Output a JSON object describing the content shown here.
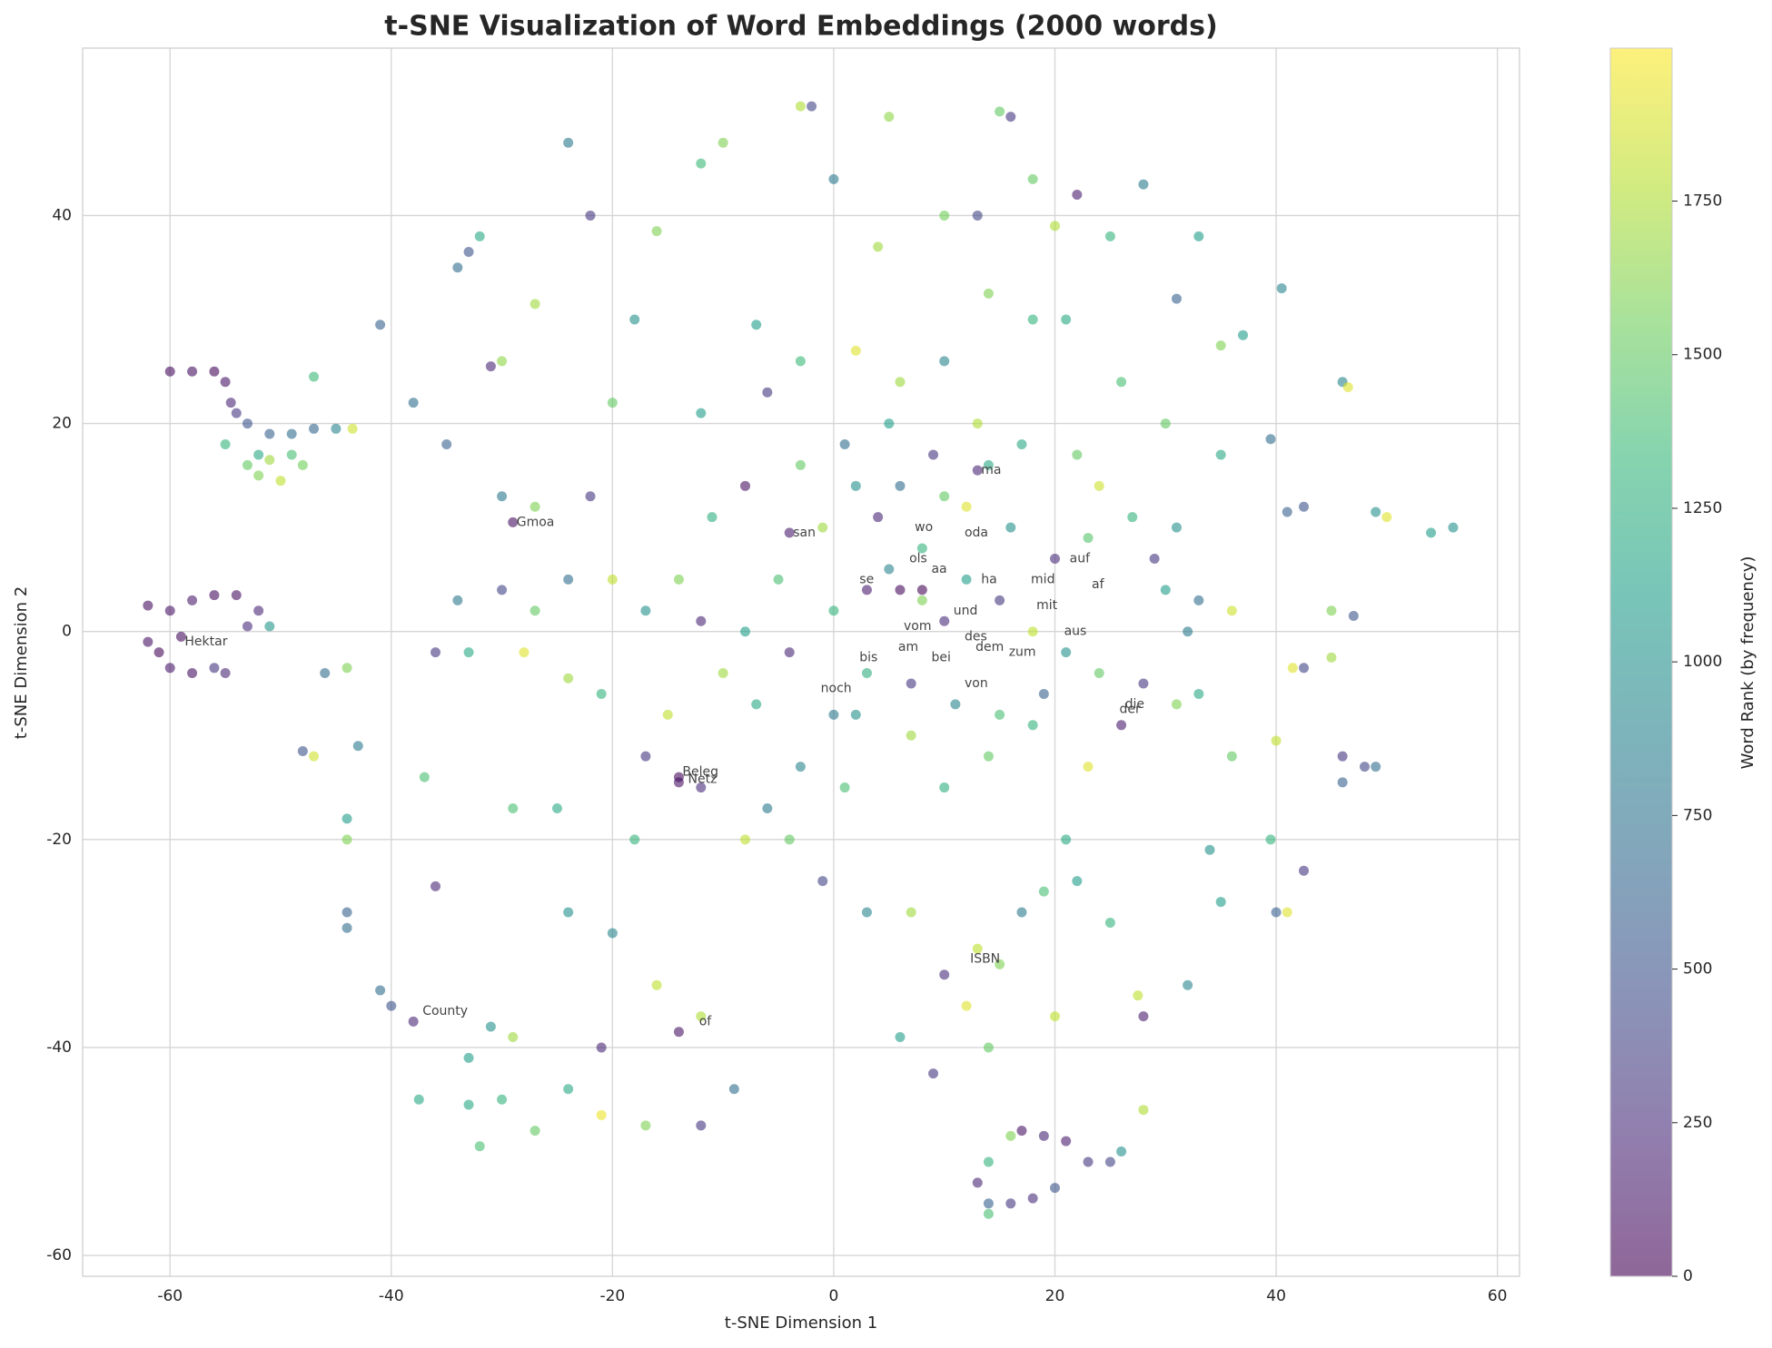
{
  "chart_data": {
    "type": "scatter",
    "title": "t-SNE Visualization of Word Embeddings (2000 words)",
    "x_label": "t-SNE Dimension 1",
    "y_label": "t-SNE Dimension 2",
    "colorbar_label": "Word Rank (by frequency)",
    "xlim": [
      -67.9,
      62.0
    ],
    "ylim": [
      -62.0,
      56.1
    ],
    "xticks": [
      -60,
      -40,
      -20,
      0,
      20,
      40,
      60
    ],
    "yticks": [
      -60,
      -40,
      -20,
      0,
      20,
      40
    ],
    "clim": [
      0,
      1999
    ],
    "cticks": [
      0,
      250,
      500,
      750,
      1000,
      1250,
      1500,
      1750
    ],
    "colormap": [
      "#440154",
      "#482878",
      "#3e4a89",
      "#31688e",
      "#26828e",
      "#1f9e89",
      "#35b779",
      "#6ece58",
      "#b5de2b",
      "#fde725"
    ],
    "alpha": 0.6,
    "grid": true,
    "x": [
      -60,
      -58,
      -56,
      -55,
      -54.5,
      -54,
      -53,
      -51,
      -49,
      -47,
      -45,
      -43.5,
      -55,
      -53,
      -52,
      -51,
      -50,
      -52,
      -49,
      -48,
      -62,
      -60,
      -58,
      -56,
      -54,
      -52,
      -51,
      -53,
      -61,
      -60,
      -58,
      -56,
      -55,
      -62,
      -47,
      -41,
      -34,
      -33,
      -32,
      -24,
      -22,
      -12,
      -10,
      -3,
      -2,
      5,
      15,
      16,
      18,
      22,
      28,
      33,
      40.5,
      -27,
      -30,
      -31,
      -18,
      -16,
      -7,
      0,
      4,
      10,
      13,
      20,
      25,
      31,
      35,
      37,
      -38,
      -35,
      -30,
      -27,
      -22,
      -20,
      -12,
      -6,
      -3,
      2,
      6,
      10,
      14,
      18,
      21,
      26,
      30,
      35,
      39.5,
      41,
      46,
      46.5,
      49,
      50,
      54,
      56,
      42.5,
      45,
      47,
      45,
      41.5,
      42.5,
      40,
      46,
      48,
      49,
      46,
      42.5,
      40,
      41,
      39.5,
      35,
      34,
      32,
      28,
      27.5,
      26,
      28,
      17,
      19,
      21,
      23,
      25,
      20,
      18,
      16,
      14,
      13,
      14,
      14,
      16,
      -17,
      -14,
      -12,
      -4,
      -1,
      3,
      7,
      10,
      13,
      15,
      12,
      6,
      9,
      14,
      20,
      21,
      19,
      22,
      25,
      17,
      -14,
      -12,
      -16,
      -21,
      -21,
      -17,
      -12,
      -9,
      -24,
      -27,
      -30,
      -32,
      -33,
      -33,
      -31,
      -29,
      -38,
      -40,
      -41,
      -37.5,
      -44,
      -44,
      -44,
      -44,
      -48,
      -47,
      -46,
      -44,
      -43,
      -37,
      -36,
      -29,
      -25,
      -24,
      -20,
      -18,
      -8,
      -6,
      -3,
      1,
      2,
      7,
      10,
      14,
      18,
      23,
      26,
      28,
      31,
      33,
      36,
      32,
      36,
      33,
      30,
      29,
      31,
      27,
      24,
      22,
      17,
      13,
      9,
      5,
      1,
      -3,
      -8,
      -11,
      -14,
      -17,
      -20,
      -24,
      -27,
      -30,
      -34,
      -36,
      -33,
      -28,
      -24,
      -21,
      -15,
      -10,
      -7,
      -4,
      0,
      3,
      5,
      8,
      10,
      12,
      15,
      18,
      21,
      24,
      19,
      15,
      11,
      7,
      3,
      0,
      4,
      8,
      12,
      16,
      20,
      23,
      2,
      -1,
      -5,
      -8,
      -12,
      6,
      10,
      14,
      -29,
      -59,
      -14,
      6,
      8,
      -4,
      13
    ],
    "y": [
      25,
      25,
      25,
      24,
      22,
      21,
      20,
      19,
      19,
      19.5,
      19.5,
      19.5,
      18,
      16,
      15,
      16.5,
      14.5,
      17,
      17,
      16,
      2.5,
      2,
      3,
      3.5,
      3.5,
      2,
      0.5,
      0.5,
      -2,
      -3.5,
      -4,
      -3.5,
      -4,
      -1,
      24.5,
      29.5,
      35,
      36.5,
      38,
      47,
      40,
      45,
      47,
      50.5,
      50.5,
      49.5,
      50,
      49.5,
      43.5,
      42,
      43,
      38,
      33,
      31.5,
      26,
      25.5,
      30,
      38.5,
      29.5,
      43.5,
      37,
      40,
      40,
      39,
      38,
      32,
      27.5,
      28.5,
      22,
      18,
      13,
      12,
      13,
      22,
      21,
      23,
      26,
      27,
      24,
      26,
      32.5,
      30,
      30,
      24,
      20,
      17,
      18.5,
      11.5,
      24,
      23.5,
      11.5,
      11,
      9.5,
      10,
      12,
      2,
      1.5,
      -2.5,
      -3.5,
      -3.5,
      -10.5,
      -12,
      -13,
      -13,
      -14.5,
      -23,
      -27,
      -27,
      -20,
      -26,
      -21,
      -34,
      -37,
      -35,
      -50,
      -46,
      -48,
      -48.5,
      -49,
      -51,
      -51,
      -53.5,
      -54.5,
      -55,
      -55,
      -53,
      -51,
      -56,
      -48.5,
      -12,
      -14,
      -15,
      -20,
      -24,
      -27,
      -27,
      -33,
      -30.5,
      -32,
      -36,
      -39,
      -42.5,
      -40,
      -37,
      -20,
      -25,
      -24,
      -28,
      -27,
      -38.5,
      -37,
      -34,
      -40,
      -46.5,
      -47.5,
      -47.5,
      -44,
      -44,
      -48,
      -45,
      -49.5,
      -45.5,
      -41,
      -38,
      -39,
      -37.5,
      -36,
      -34.5,
      -45,
      -28.5,
      -27,
      -20,
      -18,
      -11.5,
      -12,
      -4,
      -3.5,
      -11,
      -14,
      -24.5,
      -17,
      -17,
      -27,
      -29,
      -20,
      -20,
      -17,
      -13,
      -15,
      -8,
      -10,
      -15,
      -12,
      -9,
      -13,
      -9,
      -5,
      -7,
      -6,
      -12,
      0,
      2,
      3,
      4,
      7,
      10,
      11,
      14,
      17,
      18,
      20,
      17,
      20,
      18,
      16,
      14,
      11,
      5,
      2,
      5,
      5,
      2,
      4,
      3,
      -2,
      -2,
      -2,
      -4.5,
      -6,
      -8,
      -4,
      -7,
      -2,
      2,
      4,
      6,
      3,
      1,
      5,
      3,
      0,
      -2,
      -4,
      -6,
      -8,
      -7,
      -5,
      -4,
      -8,
      11,
      8,
      12,
      10,
      7,
      9,
      14,
      10,
      5,
      0,
      1,
      14,
      13,
      16,
      10.5,
      -0.5,
      -14.5,
      4,
      4,
      9.5,
      15.5
    ],
    "rank": [
      50,
      80,
      40,
      120,
      200,
      300,
      500,
      600,
      700,
      650,
      900,
      1850,
      1300,
      1500,
      1600,
      1700,
      1800,
      1200,
      1400,
      1550,
      80,
      100,
      150,
      60,
      90,
      200,
      1050,
      250,
      30,
      120,
      80,
      300,
      200,
      100,
      1350,
      600,
      700,
      500,
      1200,
      800,
      300,
      1350,
      1600,
      1750,
      400,
      1650,
      1500,
      300,
      1500,
      150,
      800,
      1100,
      900,
      1700,
      1650,
      200,
      1000,
      1600,
      1100,
      800,
      1700,
      1550,
      400,
      1750,
      1300,
      600,
      1600,
      1100,
      700,
      600,
      800,
      1600,
      300,
      1500,
      1100,
      300,
      1350,
      1900,
      1700,
      900,
      1600,
      1300,
      1200,
      1400,
      1500,
      1200,
      700,
      600,
      900,
      1900,
      1000,
      1900,
      1100,
      1000,
      500,
      1600,
      500,
      1700,
      1900,
      400,
      1800,
      300,
      400,
      700,
      600,
      300,
      600,
      1900,
      1300,
      1100,
      1000,
      900,
      150,
      1800,
      1000,
      1750,
      100,
      200,
      150,
      300,
      400,
      500,
      250,
      300,
      600,
      200,
      1300,
      1400,
      1600,
      300,
      50,
      250,
      1500,
      400,
      900,
      1700,
      250,
      1800,
      1600,
      1900,
      1100,
      300,
      1500,
      1800,
      1200,
      1400,
      1100,
      1300,
      800,
      100,
      1750,
      1800,
      200,
      1950,
      1600,
      300,
      700,
      1200,
      1500,
      1300,
      1400,
      1200,
      1100,
      1000,
      1700,
      200,
      500,
      700,
      1200,
      700,
      600,
      1600,
      1100,
      500,
      1850,
      700,
      1600,
      800,
      1400,
      200,
      1400,
      1200,
      1000,
      900,
      1300,
      1800,
      800,
      900,
      1400,
      1000,
      1700,
      1250,
      1500,
      1300,
      1900,
      150,
      300,
      1600,
      1200,
      1500,
      800,
      1850,
      700,
      1100,
      300,
      1000,
      1300,
      1850,
      1500,
      1200,
      1750,
      300,
      1100,
      700,
      1500,
      100,
      1250,
      1600,
      1000,
      1800,
      700,
      1500,
      400,
      800,
      300,
      1200,
      1900,
      1700,
      1300,
      1800,
      1700,
      1200,
      200,
      1300,
      150,
      900,
      1600,
      250,
      1100,
      300,
      1800,
      1000,
      1500,
      600,
      1400,
      900,
      300,
      1250,
      800,
      200,
      1300,
      1900,
      1000,
      250,
      1450,
      1000,
      1700,
      1400,
      1100,
      200,
      700,
      1500,
      1200,
      80,
      60,
      100,
      50,
      30,
      150,
      200
    ],
    "annotations": [
      {
        "text": "Gmoa",
        "x": -29,
        "y": 10.5
      },
      {
        "text": "san",
        "x": -4,
        "y": 9.5
      },
      {
        "text": "wo",
        "x": 7,
        "y": 10
      },
      {
        "text": "oda",
        "x": 11.5,
        "y": 9.5
      },
      {
        "text": "ma",
        "x": 13,
        "y": 15.5
      },
      {
        "text": "auf",
        "x": 21,
        "y": 7
      },
      {
        "text": "ols",
        "x": 6.5,
        "y": 7
      },
      {
        "text": "aa",
        "x": 8.5,
        "y": 6
      },
      {
        "text": "se",
        "x": 2,
        "y": 5
      },
      {
        "text": "ha",
        "x": 13,
        "y": 5
      },
      {
        "text": "mid",
        "x": 17.5,
        "y": 5
      },
      {
        "text": "af",
        "x": 23,
        "y": 4.5
      },
      {
        "text": "und",
        "x": 10.5,
        "y": 2
      },
      {
        "text": "mit",
        "x": 18,
        "y": 2.5
      },
      {
        "text": "aus",
        "x": 20.5,
        "y": 0
      },
      {
        "text": "vom",
        "x": 6,
        "y": 0.5
      },
      {
        "text": "des",
        "x": 11.5,
        "y": -0.5
      },
      {
        "text": "dem",
        "x": 12.5,
        "y": -1.5
      },
      {
        "text": "zum",
        "x": 15.5,
        "y": -2
      },
      {
        "text": "am",
        "x": 5.5,
        "y": -1.5
      },
      {
        "text": "bis",
        "x": 2,
        "y": -2.5
      },
      {
        "text": "bei",
        "x": 8.5,
        "y": -2.5
      },
      {
        "text": "von",
        "x": 11.5,
        "y": -5
      },
      {
        "text": "noch",
        "x": -1.5,
        "y": -5.5
      },
      {
        "text": "die",
        "x": 26,
        "y": -7
      },
      {
        "text": "der",
        "x": 25.5,
        "y": -7.5
      },
      {
        "text": "Hektar",
        "x": -59,
        "y": -1
      },
      {
        "text": "Beleg",
        "x": -14,
        "y": -13.5
      },
      {
        "text": "Netz",
        "x": -13.5,
        "y": -14.2
      },
      {
        "text": "ISBN",
        "x": 12,
        "y": -31.5
      },
      {
        "text": "County",
        "x": -37.5,
        "y": -36.5
      },
      {
        "text": "of",
        "x": -12.5,
        "y": -37.5
      }
    ]
  }
}
